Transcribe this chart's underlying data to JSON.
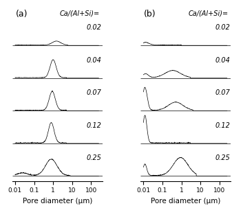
{
  "title_a": "(a)",
  "title_b": "(b)",
  "xlabel": "Pore diameter (μm)",
  "legend_label": "Ca/(Al+Si)=",
  "ratios": [
    "0.02",
    "0.04",
    "0.07",
    "0.12",
    "0.25"
  ],
  "x_lim": [
    0.007,
    400
  ],
  "x_ticks": [
    0.01,
    0.1,
    1,
    10,
    100
  ],
  "x_tick_labels": [
    "0.01",
    "0.1",
    "1",
    "10",
    "100"
  ],
  "bg_color": "#ffffff",
  "line_color": "#000000",
  "figsize": [
    3.53,
    3.03
  ],
  "dpi": 100,
  "offsets": [
    4.0,
    3.0,
    2.0,
    1.0,
    0.0
  ],
  "curve_scale": 1.0,
  "ylim": [
    -0.15,
    5.2
  ]
}
